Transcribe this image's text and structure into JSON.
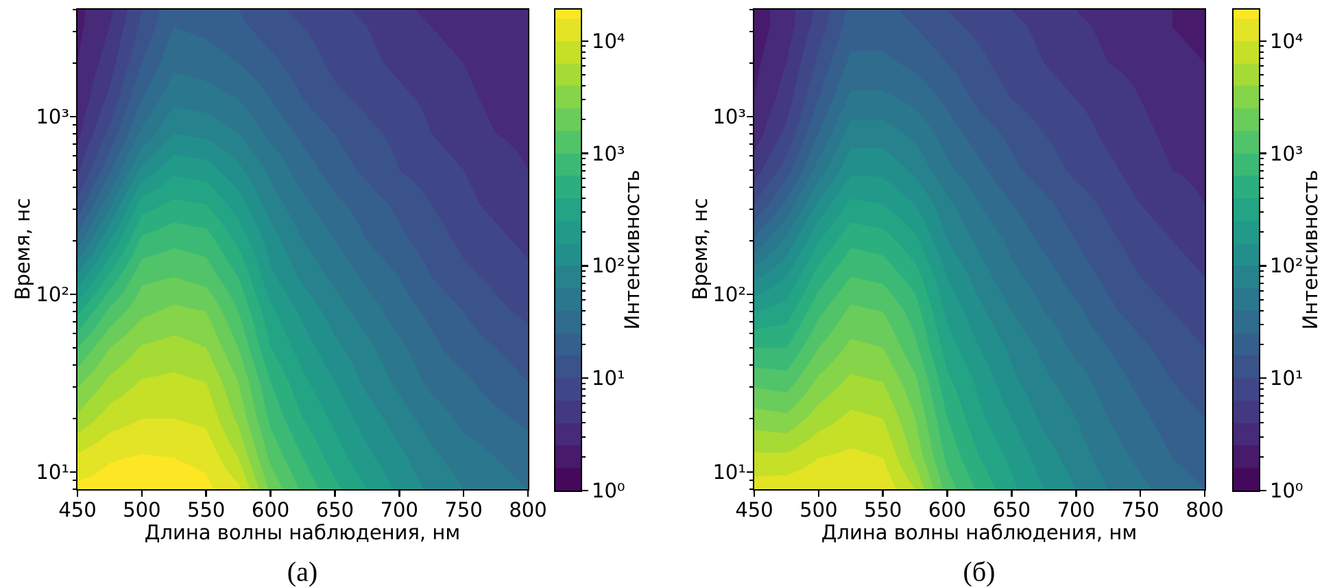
{
  "figure": {
    "background": "#ffffff",
    "panel_labels": [
      "(а)",
      "(б)"
    ]
  },
  "colormap": {
    "name": "viridis",
    "positions": [
      0,
      0.1,
      0.2,
      0.3,
      0.4,
      0.5,
      0.6,
      0.7,
      0.8,
      0.9,
      1.0
    ],
    "colors": [
      "#440154",
      "#482475",
      "#414487",
      "#355f8d",
      "#2a788e",
      "#21918c",
      "#22a884",
      "#44bf70",
      "#7ad151",
      "#bddf26",
      "#fde725"
    ],
    "contour_step_log10": 0.2,
    "scale_max_log10": 4.28
  },
  "chart_data": [
    {
      "type": "heatmap",
      "panel_label": "(а)",
      "x_label": "Длина волны наблюдения, нм",
      "y_label": "Время, нс",
      "colorbar_label": "Интенсивность",
      "x_range": [
        450,
        800
      ],
      "x_ticks": [
        450,
        500,
        550,
        600,
        650,
        700,
        750,
        800
      ],
      "y_scale": "log",
      "y_range_ns": [
        8,
        4000
      ],
      "y_major_ticks": [
        10,
        100,
        1000
      ],
      "y_tick_labels": [
        "10¹",
        "10²",
        "10³"
      ],
      "color_scale": "log",
      "color_range": [
        1,
        19000
      ],
      "color_major_ticks": [
        1,
        10,
        100,
        1000,
        10000
      ],
      "color_tick_labels": [
        "10⁰",
        "10¹",
        "10²",
        "10³",
        "10⁴"
      ],
      "wavelengths_nm": [
        450,
        475,
        500,
        525,
        550,
        575,
        600,
        625,
        650,
        675,
        700,
        725,
        750,
        775,
        800
      ],
      "times_ns": [
        8,
        12,
        20,
        32,
        50,
        80,
        125,
        200,
        320,
        500,
        800,
        1250,
        2000,
        3200,
        4000
      ],
      "log10_intensity": [
        [
          4.25,
          4.3,
          4.32,
          4.3,
          4.25,
          4.05,
          3.35,
          2.95,
          2.65,
          2.4,
          2.15,
          1.95,
          1.8,
          1.7,
          1.6
        ],
        [
          4.05,
          4.18,
          4.22,
          4.2,
          4.15,
          3.8,
          3.15,
          2.8,
          2.5,
          2.25,
          2.05,
          1.85,
          1.7,
          1.6,
          1.5
        ],
        [
          3.65,
          3.9,
          4.0,
          4.0,
          3.95,
          3.55,
          2.95,
          2.6,
          2.35,
          2.1,
          1.9,
          1.7,
          1.55,
          1.45,
          1.35
        ],
        [
          3.35,
          3.65,
          3.82,
          3.85,
          3.8,
          3.4,
          2.8,
          2.45,
          2.2,
          1.95,
          1.75,
          1.55,
          1.45,
          1.3,
          1.2
        ],
        [
          3.0,
          3.4,
          3.62,
          3.68,
          3.6,
          3.2,
          2.6,
          2.3,
          2.05,
          1.85,
          1.65,
          1.45,
          1.3,
          1.2,
          1.1
        ],
        [
          2.55,
          3.05,
          3.35,
          3.45,
          3.4,
          3.0,
          2.45,
          2.15,
          1.9,
          1.7,
          1.5,
          1.35,
          1.2,
          1.05,
          0.95
        ],
        [
          2.05,
          2.65,
          3.15,
          3.2,
          3.12,
          2.8,
          2.25,
          1.95,
          1.75,
          1.55,
          1.4,
          1.2,
          1.05,
          0.95,
          0.85
        ],
        [
          1.5,
          2.2,
          2.85,
          2.95,
          2.9,
          2.55,
          2.1,
          1.8,
          1.6,
          1.4,
          1.25,
          1.1,
          0.95,
          0.85,
          0.75
        ],
        [
          1.05,
          1.75,
          2.5,
          2.65,
          2.6,
          2.3,
          1.9,
          1.65,
          1.45,
          1.3,
          1.15,
          1.0,
          0.85,
          0.75,
          0.65
        ],
        [
          0.75,
          1.35,
          2.05,
          2.35,
          2.3,
          2.05,
          1.75,
          1.5,
          1.3,
          1.15,
          1.0,
          0.9,
          0.8,
          0.7,
          0.6
        ],
        [
          0.55,
          1.05,
          1.65,
          2.0,
          1.95,
          1.8,
          1.55,
          1.35,
          1.2,
          1.05,
          0.95,
          0.8,
          0.7,
          0.6,
          0.55
        ],
        [
          0.45,
          0.85,
          1.4,
          1.75,
          1.7,
          1.6,
          1.4,
          1.2,
          1.05,
          0.95,
          0.85,
          0.75,
          0.65,
          0.55,
          0.5
        ],
        [
          0.4,
          0.7,
          1.2,
          1.55,
          1.5,
          1.4,
          1.25,
          1.1,
          0.95,
          0.85,
          0.75,
          0.65,
          0.6,
          0.5,
          0.45
        ],
        [
          0.35,
          0.6,
          1.05,
          1.4,
          1.35,
          1.25,
          1.1,
          1.0,
          0.9,
          0.8,
          0.7,
          0.6,
          0.55,
          0.45,
          0.4
        ],
        [
          0.35,
          0.55,
          1.0,
          1.35,
          1.3,
          1.2,
          1.05,
          0.95,
          0.85,
          0.75,
          0.65,
          0.55,
          0.5,
          0.45,
          0.4
        ]
      ]
    },
    {
      "type": "heatmap",
      "panel_label": "(б)",
      "x_label": "Длина волны наблюдения, нм",
      "y_label": "Время, нс",
      "colorbar_label": "Интенсивность",
      "x_range": [
        450,
        800
      ],
      "x_ticks": [
        450,
        500,
        550,
        600,
        650,
        700,
        750,
        800
      ],
      "y_scale": "log",
      "y_range_ns": [
        8,
        4000
      ],
      "y_major_ticks": [
        10,
        100,
        1000
      ],
      "y_tick_labels": [
        "10¹",
        "10²",
        "10³"
      ],
      "color_scale": "log",
      "color_range": [
        1,
        19000
      ],
      "color_major_ticks": [
        1,
        10,
        100,
        1000,
        10000
      ],
      "color_tick_labels": [
        "10⁰",
        "10¹",
        "10²",
        "10³",
        "10⁴"
      ],
      "wavelengths_nm": [
        450,
        475,
        500,
        525,
        550,
        575,
        600,
        625,
        650,
        675,
        700,
        725,
        750,
        775,
        800
      ],
      "times_ns": [
        8,
        12,
        20,
        32,
        50,
        80,
        125,
        200,
        320,
        500,
        800,
        1250,
        2000,
        3200,
        4000
      ],
      "log10_intensity": [
        [
          4.1,
          4.12,
          4.18,
          4.2,
          4.15,
          3.8,
          3.1,
          2.75,
          2.45,
          2.2,
          2.0,
          1.8,
          1.65,
          1.5,
          1.4
        ],
        [
          3.85,
          3.85,
          4.0,
          4.05,
          4.0,
          3.55,
          2.95,
          2.6,
          2.35,
          2.1,
          1.9,
          1.7,
          1.55,
          1.4,
          1.3
        ],
        [
          3.5,
          3.45,
          3.7,
          3.85,
          3.8,
          3.4,
          2.8,
          2.45,
          2.2,
          1.95,
          1.8,
          1.6,
          1.45,
          1.3,
          1.2
        ],
        [
          3.15,
          3.1,
          3.45,
          3.65,
          3.6,
          3.25,
          2.65,
          2.35,
          2.05,
          1.85,
          1.7,
          1.5,
          1.35,
          1.2,
          1.1
        ],
        [
          2.8,
          2.8,
          3.2,
          3.45,
          3.4,
          3.05,
          2.5,
          2.2,
          1.95,
          1.75,
          1.55,
          1.4,
          1.25,
          1.1,
          1.0
        ],
        [
          2.4,
          2.5,
          2.95,
          3.25,
          3.2,
          2.9,
          2.35,
          2.05,
          1.8,
          1.6,
          1.45,
          1.25,
          1.1,
          1.0,
          0.9
        ],
        [
          1.95,
          2.2,
          2.7,
          3.0,
          2.95,
          2.7,
          2.2,
          1.9,
          1.65,
          1.5,
          1.3,
          1.15,
          1.0,
          0.9,
          0.8
        ],
        [
          1.45,
          1.85,
          2.4,
          2.75,
          2.7,
          2.45,
          2.0,
          1.75,
          1.55,
          1.35,
          1.2,
          1.05,
          0.9,
          0.8,
          0.7
        ],
        [
          1.0,
          1.45,
          2.05,
          2.45,
          2.4,
          2.2,
          1.85,
          1.6,
          1.4,
          1.25,
          1.1,
          0.95,
          0.8,
          0.7,
          0.6
        ],
        [
          0.7,
          1.1,
          1.7,
          2.15,
          2.15,
          1.95,
          1.65,
          1.45,
          1.25,
          1.1,
          0.95,
          0.85,
          0.7,
          0.6,
          0.55
        ],
        [
          0.5,
          0.85,
          1.4,
          1.9,
          1.9,
          1.75,
          1.5,
          1.3,
          1.15,
          1.0,
          0.9,
          0.75,
          0.65,
          0.55,
          0.5
        ],
        [
          0.4,
          0.7,
          1.2,
          1.65,
          1.65,
          1.55,
          1.35,
          1.15,
          1.0,
          0.9,
          0.8,
          0.7,
          0.6,
          0.5,
          0.45
        ],
        [
          0.35,
          0.6,
          1.05,
          1.45,
          1.45,
          1.35,
          1.2,
          1.05,
          0.9,
          0.8,
          0.7,
          0.6,
          0.55,
          0.45,
          0.4
        ],
        [
          0.3,
          0.5,
          0.9,
          1.3,
          1.3,
          1.2,
          1.05,
          0.95,
          0.85,
          0.75,
          0.65,
          0.55,
          0.5,
          0.4,
          0.35
        ],
        [
          0.3,
          0.5,
          0.85,
          1.25,
          1.25,
          1.15,
          1.0,
          0.9,
          0.8,
          0.7,
          0.6,
          0.5,
          0.45,
          0.4,
          0.35
        ]
      ]
    }
  ]
}
